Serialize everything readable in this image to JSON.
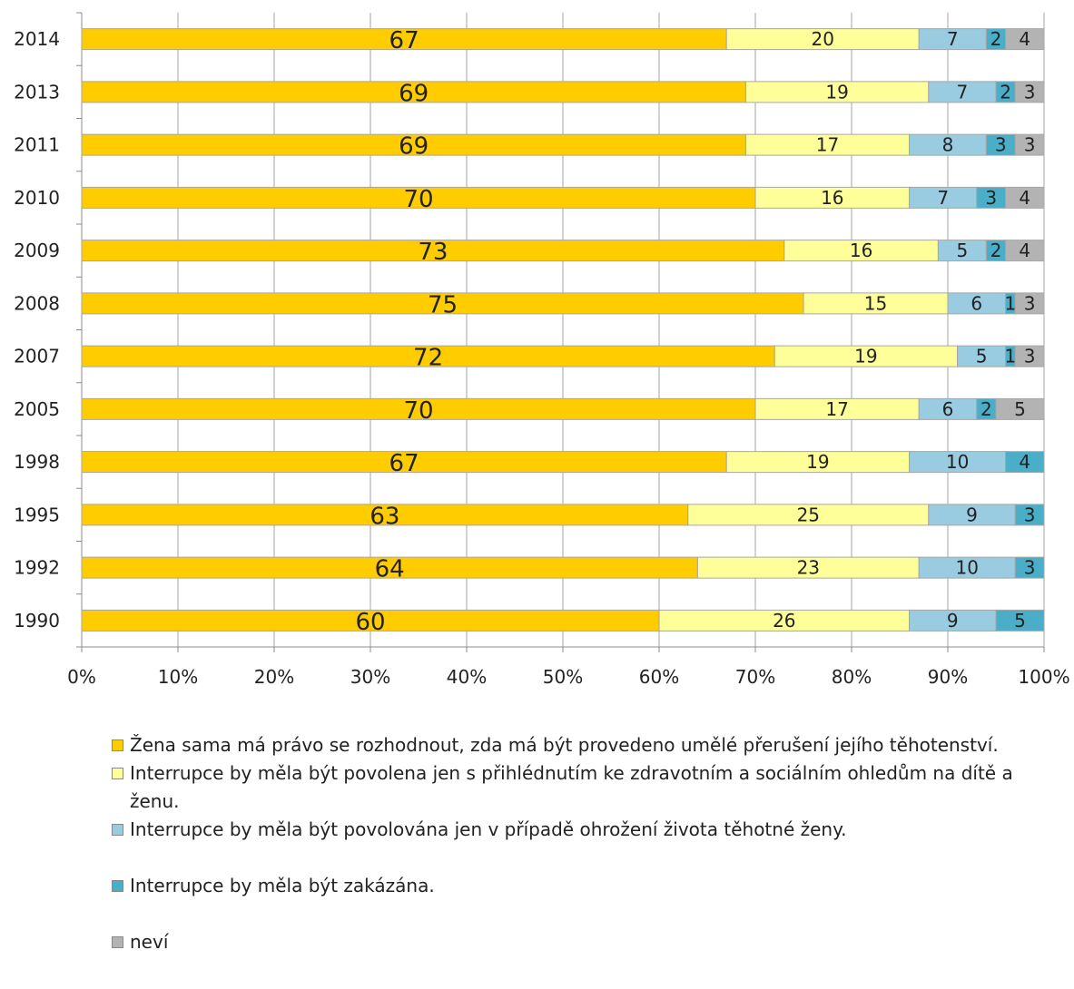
{
  "chart_data": {
    "type": "bar",
    "orientation": "horizontal",
    "stacked": true,
    "categories": [
      "2014",
      "2013",
      "2011",
      "2010",
      "2009",
      "2008",
      "2007",
      "2005",
      "1998",
      "1995",
      "1992",
      "1990"
    ],
    "series": [
      {
        "name": "Žena sama má právo se rozhodnout, zda má být provedeno umělé přerušení jejího těhotenství.",
        "color": "#ffcc00",
        "values": [
          67,
          69,
          69,
          70,
          73,
          75,
          72,
          70,
          67,
          63,
          64,
          60
        ]
      },
      {
        "name": "Interrupce by měla být povolena jen s přihlédnutím ke zdravotním a sociálním ohledům na dítě a ženu.",
        "color": "#ffff99",
        "values": [
          20,
          19,
          17,
          16,
          16,
          15,
          19,
          17,
          19,
          25,
          23,
          26
        ]
      },
      {
        "name": "Interrupce by měla být povolována jen v případě ohrožení života těhotné ženy.",
        "color": "#99cce0",
        "values": [
          7,
          7,
          8,
          7,
          5,
          6,
          5,
          6,
          10,
          9,
          10,
          9
        ]
      },
      {
        "name": "Interrupce by měla být zakázána.",
        "color": "#4aaec8",
        "values": [
          2,
          2,
          3,
          3,
          2,
          1,
          1,
          2,
          4,
          3,
          3,
          5
        ]
      },
      {
        "name": "neví",
        "color": "#b3b3b3",
        "values": [
          4,
          3,
          3,
          4,
          4,
          3,
          3,
          5,
          null,
          null,
          null,
          null
        ]
      }
    ],
    "x_ticks": [
      "0%",
      "10%",
      "20%",
      "30%",
      "40%",
      "50%",
      "60%",
      "70%",
      "80%",
      "90%",
      "100%"
    ],
    "xlim": [
      0,
      100
    ],
    "grid": true,
    "legend_position": "bottom",
    "title": "",
    "xlabel": "",
    "ylabel": ""
  }
}
